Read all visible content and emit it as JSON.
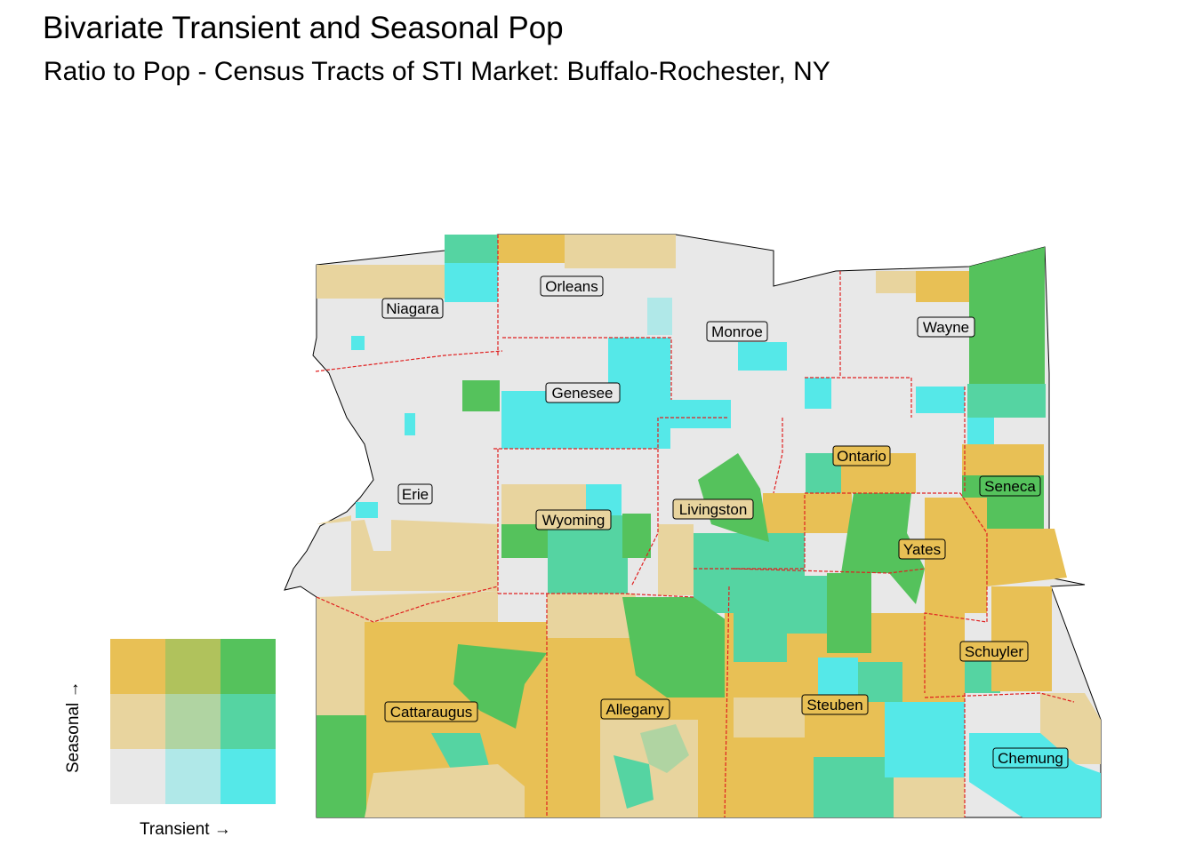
{
  "title": "Bivariate Transient and Seasonal Pop",
  "subtitle": "Ratio to Pop - Census Tracts of STI Market: Buffalo-Rochester, NY",
  "legend": {
    "x_label": "Transient →",
    "y_label": "Seasonal →",
    "grid": [
      [
        "#e8c055",
        "#b0c25c",
        "#55c25c"
      ],
      [
        "#e8d49e",
        "#b0d4a2",
        "#55d4a2"
      ],
      [
        "#e8e8e8",
        "#b0e8e8",
        "#55e8e8"
      ]
    ]
  },
  "colors": {
    "low": "#e8e8e8",
    "seasonal_mid": "#e8d49e",
    "seasonal_high": "#e8c055",
    "transient_mid": "#b0e8e8",
    "transient_high": "#55e8e8",
    "mid_mid": "#b0d4a2",
    "both_high": "#55c25c",
    "high_seasonal_mid_transient": "#b0c25c",
    "mid_seasonal_high_transient": "#55d4a2",
    "county_border": "#e02020"
  },
  "counties": [
    {
      "name": "Niagara"
    },
    {
      "name": "Orleans"
    },
    {
      "name": "Monroe"
    },
    {
      "name": "Wayne"
    },
    {
      "name": "Genesee"
    },
    {
      "name": "Ontario"
    },
    {
      "name": "Erie"
    },
    {
      "name": "Seneca"
    },
    {
      "name": "Livingston"
    },
    {
      "name": "Wyoming"
    },
    {
      "name": "Yates"
    },
    {
      "name": "Schuyler"
    },
    {
      "name": "Cattaraugus"
    },
    {
      "name": "Allegany"
    },
    {
      "name": "Steuben"
    },
    {
      "name": "Chemung"
    }
  ]
}
